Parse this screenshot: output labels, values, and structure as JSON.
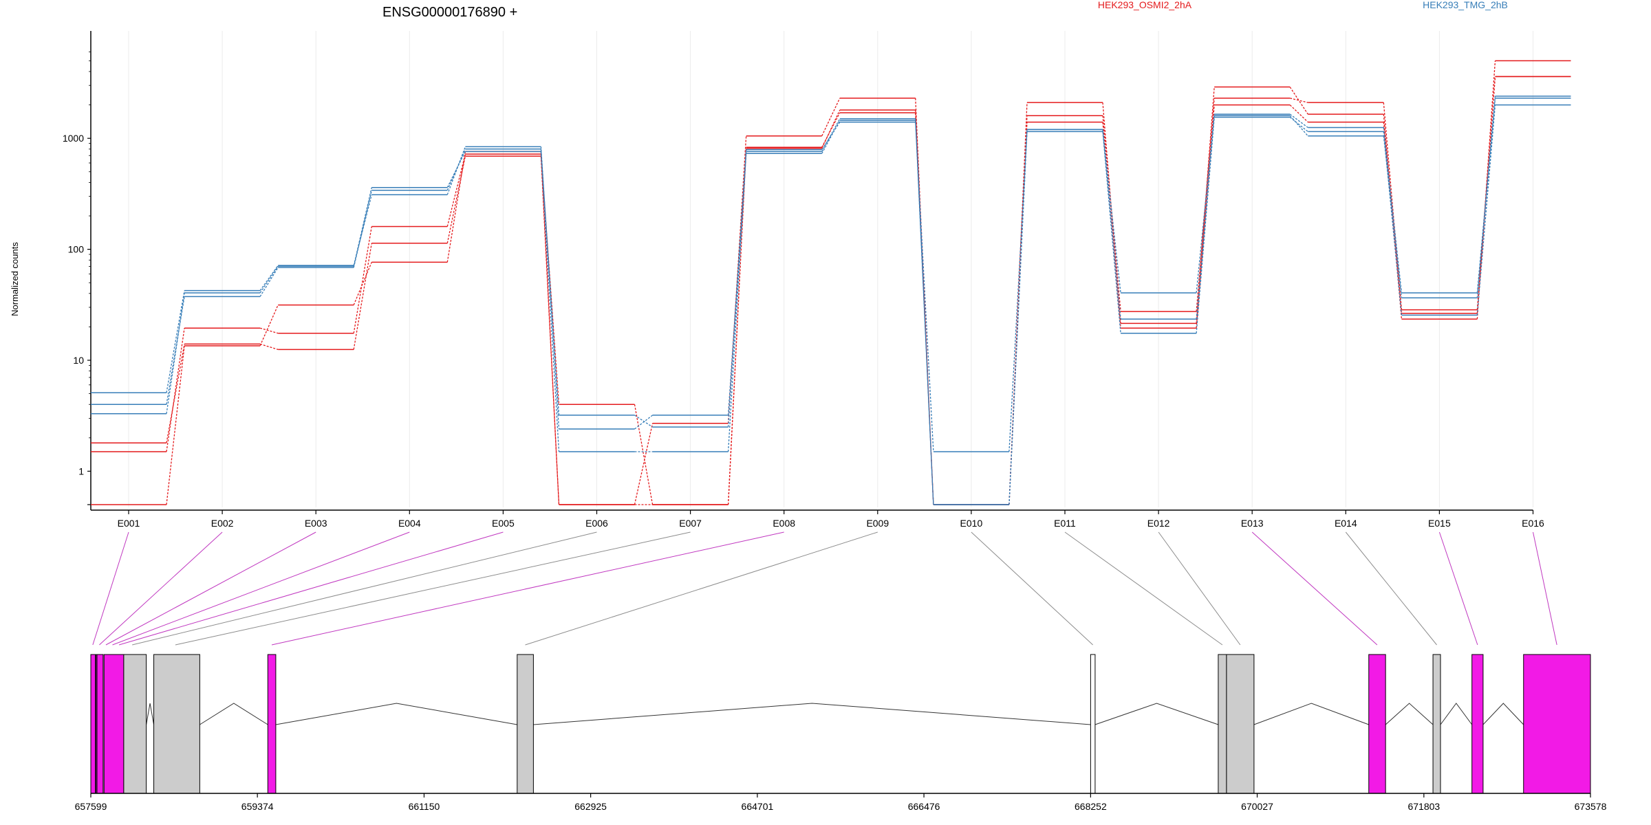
{
  "chart_data": {
    "type": "line",
    "title": "ENSG00000176890 +",
    "ylabel": "Normalized counts",
    "xlabel": "",
    "y_scale": "log10 (count + 0.5)",
    "ylim": [
      0.5,
      6500
    ],
    "y_ticks": [
      1,
      10,
      100,
      1000
    ],
    "y_tick_labels": [
      "1",
      "10",
      "100",
      "1000"
    ],
    "grid": "vertical lines at exon centers",
    "legend_position": "top, text labels in condition color",
    "categories": [
      "E001",
      "E002",
      "E003",
      "E004",
      "E005",
      "E006",
      "E007",
      "E008",
      "E009",
      "E010",
      "E011",
      "E012",
      "E013",
      "E014",
      "E015",
      "E016"
    ],
    "condition_colors": {
      "HEK293_OSMI2_2hA": "#e41a1c",
      "HEK293_TMG_2hB": "#377eb8"
    },
    "series": [
      {
        "condition": "HEK293_OSMI2_2hA",
        "values": [
          1.0,
          19,
          17,
          160,
          720,
          3.5,
          0,
          830,
          1700,
          0,
          2100,
          21,
          2900,
          1650,
          23,
          5000
        ]
      },
      {
        "condition": "HEK293_OSMI2_2hA",
        "values": [
          1.3,
          13.5,
          12,
          113,
          690,
          0,
          2.2,
          1050,
          2300,
          0,
          1600,
          27,
          2300,
          2100,
          28,
          3600
        ]
      },
      {
        "condition": "HEK293_OSMI2_2hA",
        "values": [
          0,
          13,
          31,
          76,
          760,
          0,
          0,
          810,
          1800,
          0,
          1400,
          19,
          2000,
          1400,
          26,
          3600
        ]
      },
      {
        "condition": "HEK293_TMG_2hB",
        "values": [
          3.5,
          37,
          68,
          340,
          800,
          2.7,
          2.0,
          760,
          1500,
          0,
          1200,
          40,
          1650,
          1250,
          40,
          2400
        ]
      },
      {
        "condition": "HEK293_TMG_2hB",
        "values": [
          4.6,
          42,
          71,
          310,
          840,
          1.9,
          2.7,
          790,
          1400,
          1.0,
          1200,
          23,
          1600,
          1050,
          36,
          2300
        ]
      },
      {
        "condition": "HEK293_TMG_2hB",
        "values": [
          2.8,
          40,
          70,
          360,
          760,
          1.0,
          1.0,
          730,
          1450,
          0,
          1150,
          17,
          1550,
          1150,
          25,
          2000
        ]
      }
    ],
    "gene_model": {
      "coordinate_ticks": [
        "657599",
        "659374",
        "661150",
        "662925",
        "664701",
        "666476",
        "668252",
        "670027",
        "671803",
        "673578"
      ],
      "coord_range": [
        657599,
        673578
      ],
      "exons": [
        {
          "start": 657599,
          "end": 657648,
          "class": "significant"
        },
        {
          "start": 657655,
          "end": 657660,
          "class": "significant"
        },
        {
          "start": 657665,
          "end": 657730,
          "class": "significant"
        },
        {
          "start": 657740,
          "end": 657950,
          "class": "significant"
        },
        {
          "start": 657950,
          "end": 658190,
          "class": "tested"
        },
        {
          "start": 658270,
          "end": 658760,
          "class": "tested"
        },
        {
          "start": 659485,
          "end": 659570,
          "class": "significant"
        },
        {
          "start": 662142,
          "end": 662315,
          "class": "tested"
        },
        {
          "start": 668252,
          "end": 668300,
          "class": "untested"
        },
        {
          "start": 669612,
          "end": 669700,
          "class": "tested"
        },
        {
          "start": 669700,
          "end": 669993,
          "class": "tested"
        },
        {
          "start": 671216,
          "end": 671395,
          "class": "significant"
        },
        {
          "start": 671900,
          "end": 671980,
          "class": "tested"
        },
        {
          "start": 672315,
          "end": 672434,
          "class": "significant"
        },
        {
          "start": 672865,
          "end": 673578,
          "class": "significant"
        }
      ],
      "class_colors": {
        "significant": "#f21ae6",
        "tested": "#cccccc",
        "untested": "#ffffff"
      },
      "exon_links": [
        {
          "exon": "E001",
          "coord": 657620,
          "significant": true
        },
        {
          "exon": "E002",
          "coord": 657690,
          "significant": true
        },
        {
          "exon": "E003",
          "coord": 657760,
          "significant": true
        },
        {
          "exon": "E004",
          "coord": 657830,
          "significant": true
        },
        {
          "exon": "E005",
          "coord": 657900,
          "significant": true
        },
        {
          "exon": "E006",
          "coord": 658040,
          "significant": false
        },
        {
          "exon": "E007",
          "coord": 658500,
          "significant": false
        },
        {
          "exon": "E008",
          "coord": 659527,
          "significant": true
        },
        {
          "exon": "E009",
          "coord": 662228,
          "significant": false
        },
        {
          "exon": "E010",
          "coord": 668276,
          "significant": false
        },
        {
          "exon": "E011",
          "coord": 669656,
          "significant": false
        },
        {
          "exon": "E012",
          "coord": 669846,
          "significant": false
        },
        {
          "exon": "E013",
          "coord": 671305,
          "significant": true
        },
        {
          "exon": "E014",
          "coord": 671940,
          "significant": false
        },
        {
          "exon": "E015",
          "coord": 672375,
          "significant": true
        },
        {
          "exon": "E016",
          "coord": 673220,
          "significant": true
        }
      ]
    }
  }
}
